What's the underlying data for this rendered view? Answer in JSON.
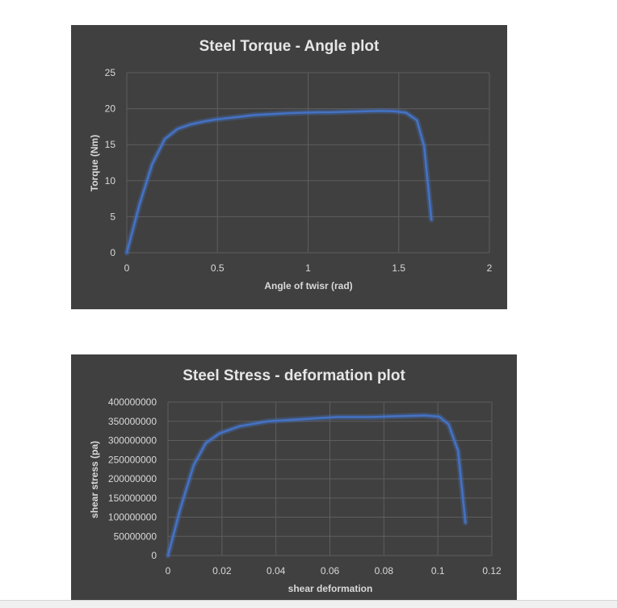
{
  "chart_data": [
    {
      "type": "line",
      "title": "Steel Torque - Angle plot",
      "xlabel": "Angle of twisr (rad)",
      "ylabel": "Torque (Nm)",
      "xlim": [
        0,
        2
      ],
      "ylim": [
        0,
        25
      ],
      "xticks": [
        0,
        0.5,
        1,
        1.5,
        2
      ],
      "yticks": [
        0,
        5,
        10,
        15,
        20,
        25
      ],
      "xtick_labels": [
        "0",
        "0.5",
        "1",
        "1.5",
        "2"
      ],
      "ytick_labels": [
        "0",
        "5",
        "10",
        "15",
        "20",
        "25"
      ],
      "grid": true,
      "legend": "none",
      "color": "#4472c4",
      "series": [
        {
          "x": [
            0,
            0.07,
            0.14,
            0.21,
            0.28,
            0.35,
            0.42,
            0.49,
            0.56,
            0.63,
            0.7,
            0.77,
            0.84,
            0.91,
            0.98,
            1.05,
            1.12,
            1.19,
            1.26,
            1.33,
            1.4,
            1.47,
            1.54,
            1.6,
            1.64,
            1.68
          ],
          "y": [
            0,
            6.7,
            12.3,
            15.8,
            17.2,
            17.8,
            18.2,
            18.5,
            18.7,
            18.9,
            19.1,
            19.2,
            19.3,
            19.4,
            19.45,
            19.5,
            19.5,
            19.55,
            19.6,
            19.65,
            19.7,
            19.65,
            19.45,
            18.4,
            14.8,
            4.6
          ]
        }
      ]
    },
    {
      "type": "line",
      "title": "Steel Stress - deformation plot",
      "xlabel": "shear deformation",
      "ylabel": "shear stress (pa)",
      "xlim": [
        0,
        0.12
      ],
      "ylim": [
        0,
        400000000
      ],
      "xticks": [
        0,
        0.02,
        0.04,
        0.06,
        0.08,
        0.1,
        0.12
      ],
      "yticks": [
        0,
        50000000,
        100000000,
        150000000,
        200000000,
        250000000,
        300000000,
        350000000,
        400000000
      ],
      "xtick_labels": [
        "0",
        "0.02",
        "0.04",
        "0.06",
        "0.08",
        "0.1",
        "0.12"
      ],
      "ytick_labels": [
        "0",
        "50000000",
        "100000000",
        "150000000",
        "200000000",
        "250000000",
        "300000000",
        "350000000",
        "400000000"
      ],
      "grid": true,
      "legend": "none",
      "color": "#4472c4",
      "series": [
        {
          "x": [
            0,
            0.0045,
            0.0095,
            0.014,
            0.019,
            0.0265,
            0.037,
            0.044,
            0.0625,
            0.0755,
            0.0835,
            0.095,
            0.1005,
            0.104,
            0.1075,
            0.1102
          ],
          "y": [
            0,
            120000000,
            235000000,
            293000000,
            318000000,
            337000000,
            350000000,
            353000000,
            361000000,
            361000000,
            363000000,
            365000000,
            362000000,
            342000000,
            273000000,
            86000000
          ]
        }
      ]
    }
  ]
}
